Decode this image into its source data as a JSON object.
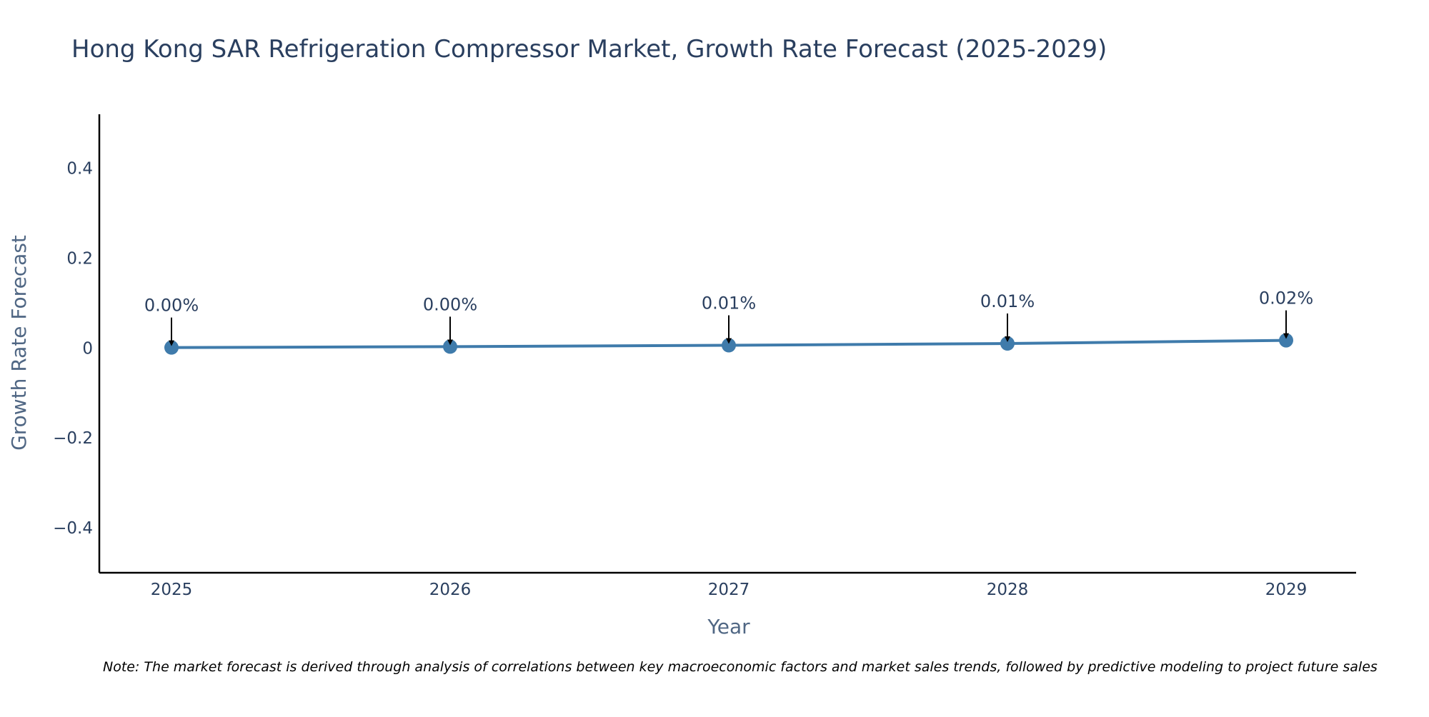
{
  "chart_data": {
    "type": "line",
    "title": "Hong Kong SAR Refrigeration Compressor Market, Growth Rate Forecast (2025-2029)",
    "xlabel": "Year",
    "ylabel": "Growth Rate Forecast",
    "categories": [
      "2025",
      "2026",
      "2027",
      "2028",
      "2029"
    ],
    "series": [
      {
        "name": "Growth Rate Forecast",
        "values": [
          0.001,
          0.003,
          0.006,
          0.01,
          0.017
        ],
        "color": "#3f7bab"
      }
    ],
    "data_labels": [
      "0.00%",
      "0.00%",
      "0.01%",
      "0.01%",
      "0.02%"
    ],
    "ylim": [
      -0.5,
      0.52
    ],
    "yticks": [
      0.4,
      0.2,
      0,
      -0.2,
      -0.4
    ],
    "ytick_labels": [
      "0.4",
      "0.2",
      "0",
      "−0.2",
      "−0.4"
    ],
    "grid": false,
    "legend": "none",
    "note": "Note: The market forecast is derived through analysis of correlations between key macroeconomic factors and market sales trends, followed by predictive modeling to project future sales"
  },
  "colors": {
    "line": "#3f7bab",
    "marker": "#3f7bab",
    "axis": "#000000",
    "text": "#2a3f5f",
    "arrow": "#000000"
  }
}
